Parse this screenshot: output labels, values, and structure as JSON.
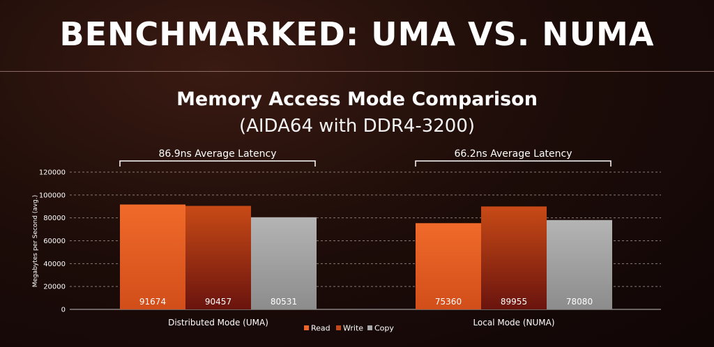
{
  "slide": {
    "title": "BENCHMARKED: UMA VS. NUMA"
  },
  "chart_data": {
    "type": "bar",
    "title": "Memory Access Mode Comparison",
    "subtitle": "(AIDA64 with DDR4-3200)",
    "ylabel": "Megabytes per Second (avg.)",
    "xlabel": "",
    "ylim": [
      0,
      120000
    ],
    "yticks": [
      0,
      20000,
      40000,
      60000,
      80000,
      100000,
      120000
    ],
    "grid": true,
    "legend_position": "bottom-center",
    "categories": [
      "Distributed Mode (UMA)",
      "Local Mode (NUMA)"
    ],
    "series": [
      {
        "name": "Read",
        "color": "#e8622a",
        "values": [
          91674,
          75360
        ]
      },
      {
        "name": "Write",
        "color": "#c04a1c",
        "values": [
          90457,
          89955
        ]
      },
      {
        "name": "Copy",
        "color": "#a8a8a8",
        "values": [
          80531,
          78080
        ]
      }
    ],
    "annotations": [
      "86.9ns Average Latency",
      "66.2ns Average Latency"
    ]
  }
}
